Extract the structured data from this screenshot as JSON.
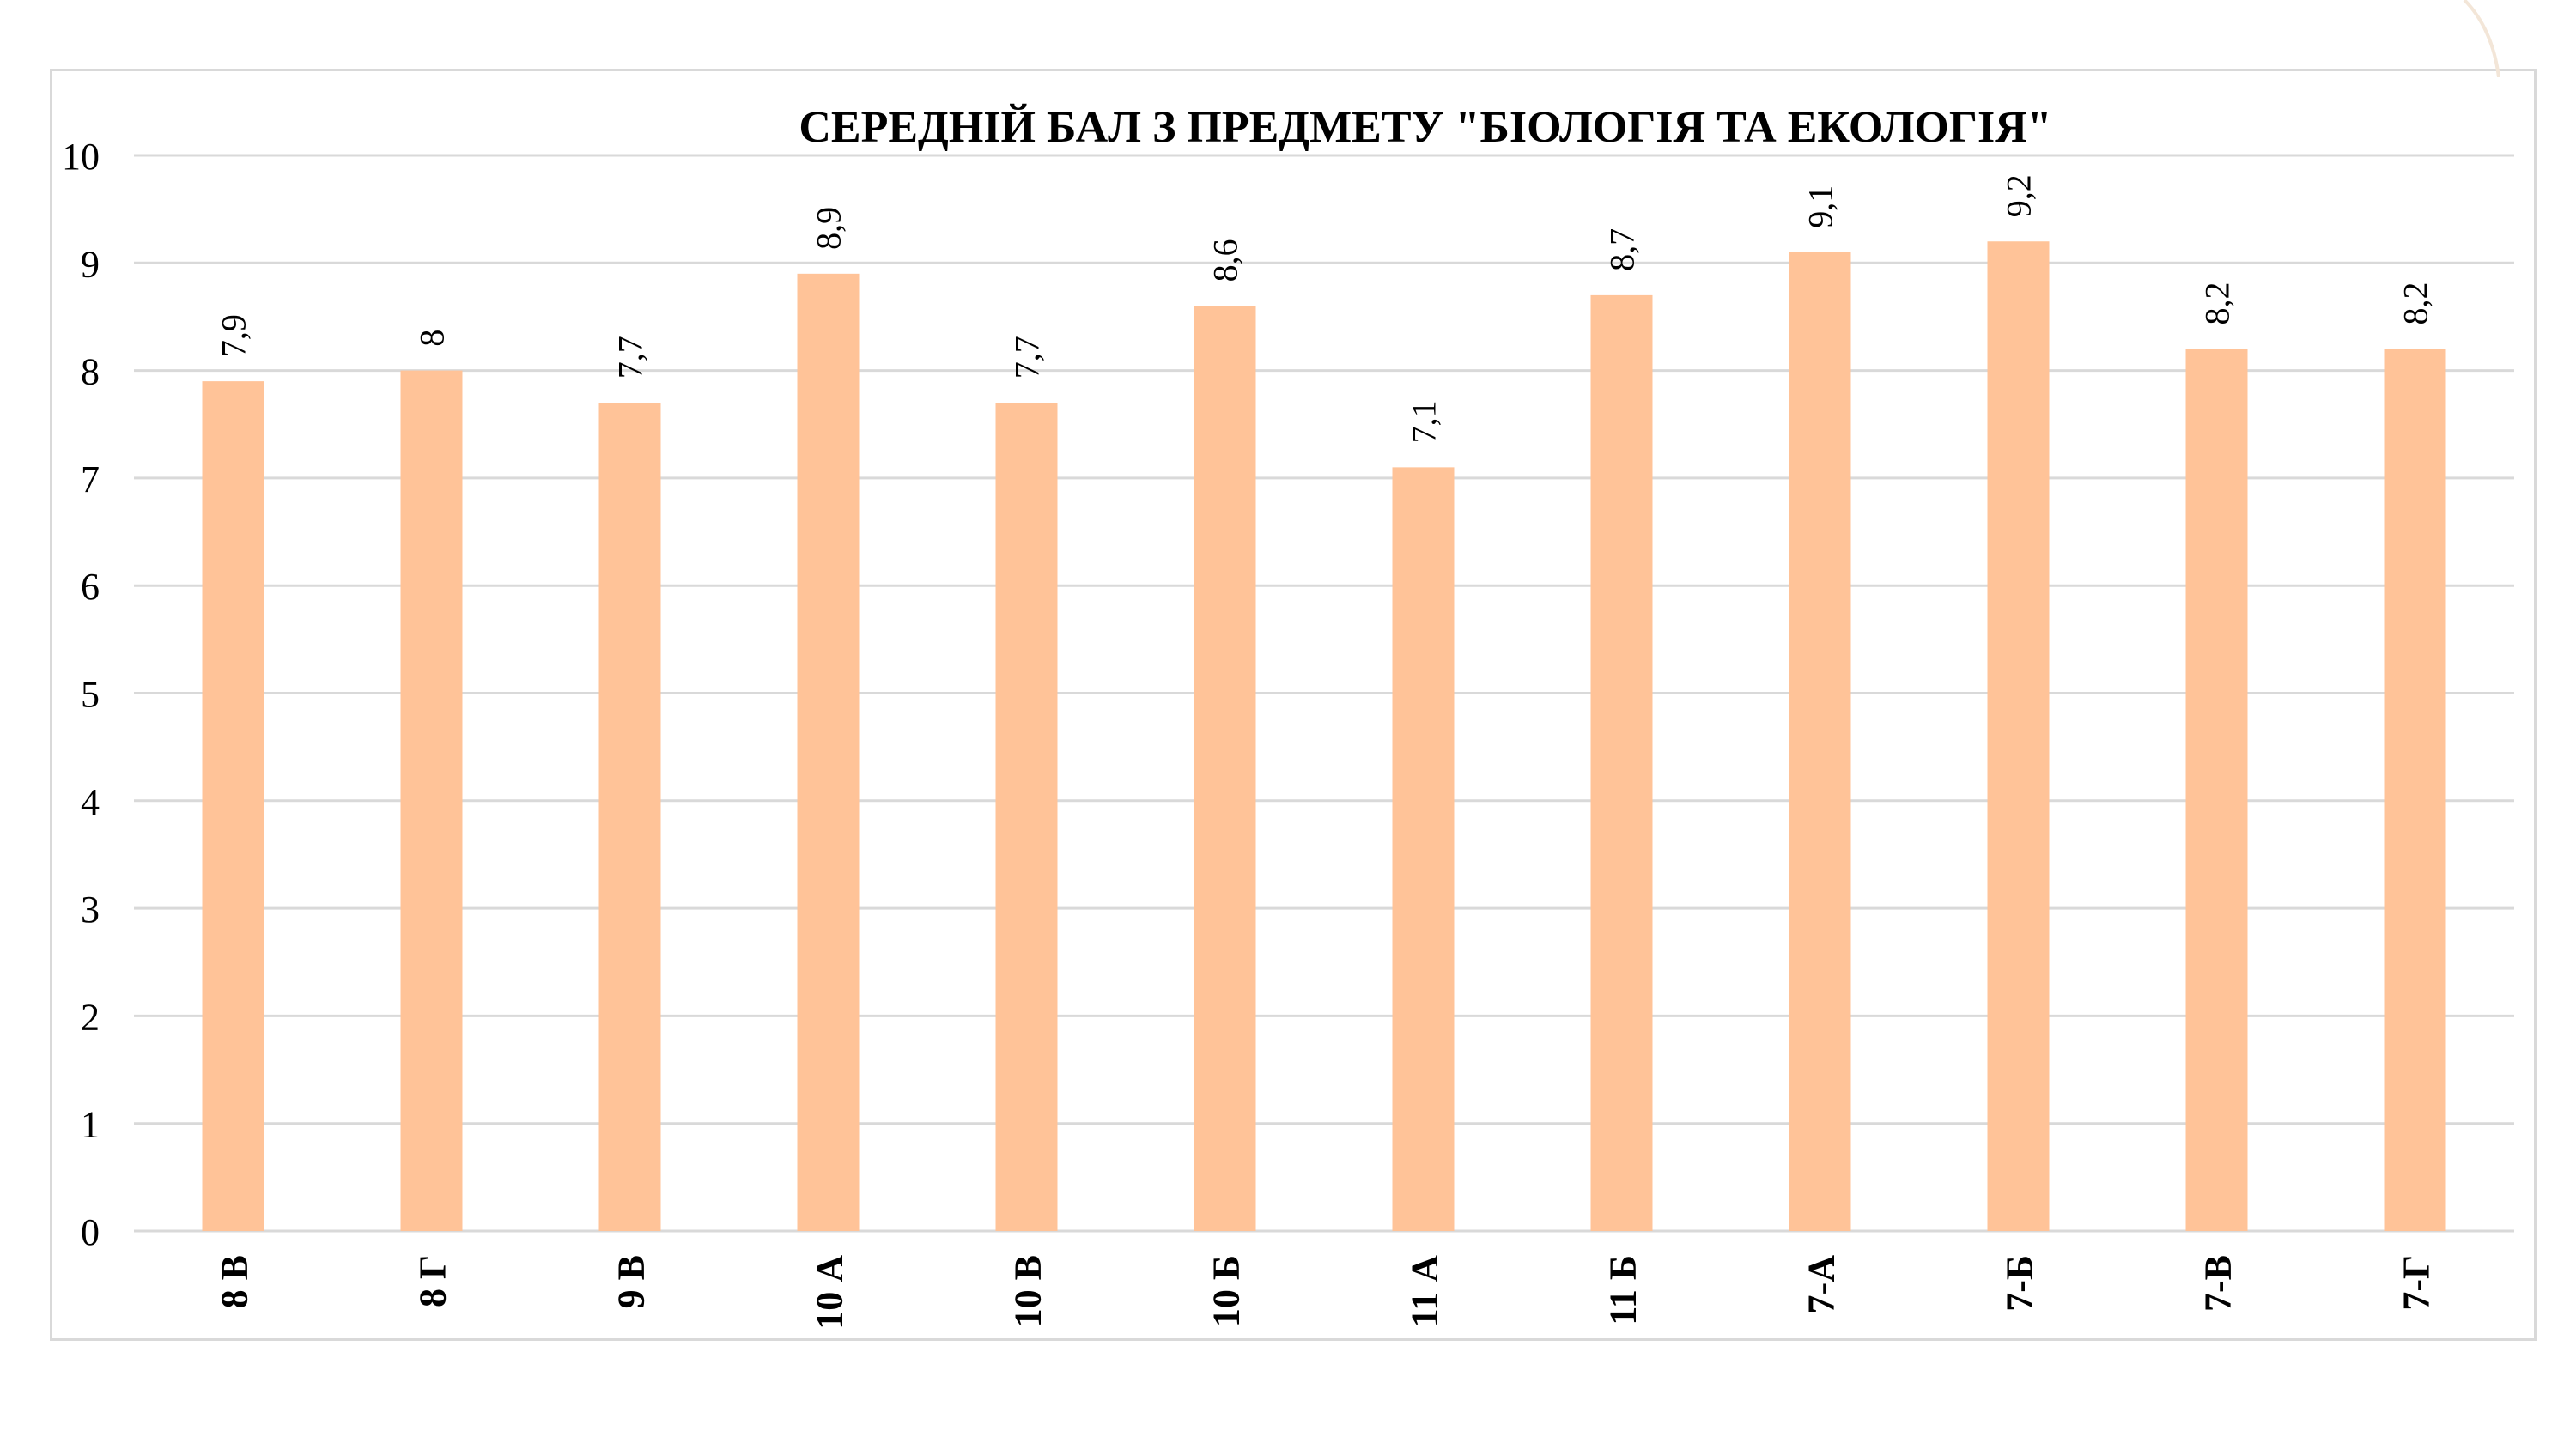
{
  "chart_data": {
    "type": "bar",
    "title": "СЕРЕДНІЙ БАЛ З ПРЕДМЕТУ \"БІОЛОГІЯ ТА ЕКОЛОГІЯ\"",
    "xlabel": "",
    "ylabel": "",
    "categories": [
      "8 В",
      "8 Г",
      "9 В",
      "10 А",
      "10 В",
      "10 Б",
      "11 А",
      "11 Б",
      "7-А",
      "7-Б",
      "7-В",
      "7-Г"
    ],
    "values": [
      7.9,
      8,
      7.7,
      8.9,
      7.7,
      8.6,
      7.1,
      8.7,
      9.1,
      9.2,
      8.2,
      8.2
    ],
    "value_labels": [
      "7,9",
      "8",
      "7,7",
      "8,9",
      "7,7",
      "8,6",
      "7,1",
      "8,7",
      "9,1",
      "9,2",
      "8,2",
      "8,2"
    ],
    "ylim": [
      0,
      10
    ],
    "yticks": [
      "0",
      "1",
      "2",
      "3",
      "4",
      "5",
      "6",
      "7",
      "8",
      "9",
      "10"
    ],
    "grid": true,
    "legend": "none",
    "bar_color": "#FFC398",
    "grid_color": "#d9d9d9"
  }
}
